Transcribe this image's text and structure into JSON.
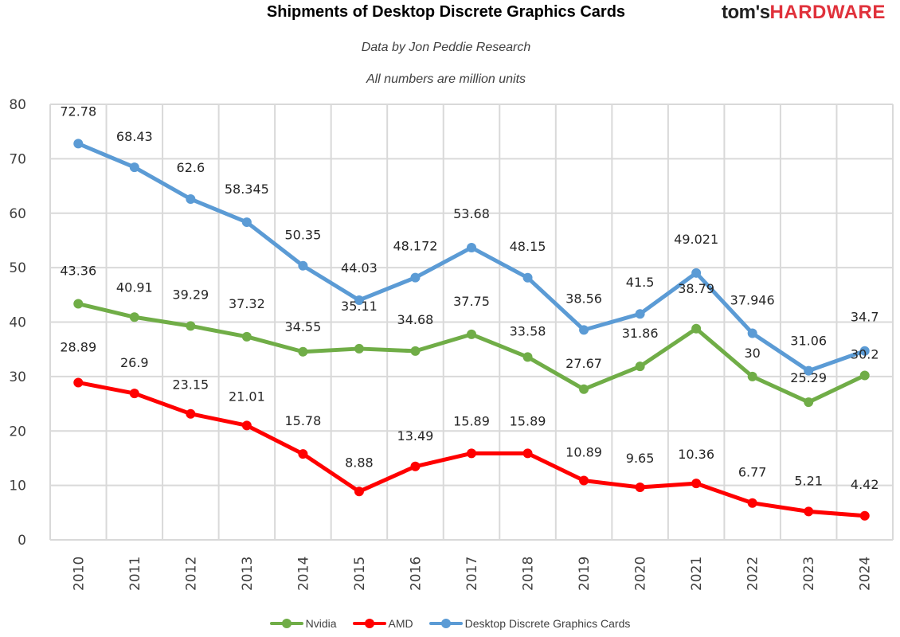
{
  "header": {
    "logo_part1": "tom's",
    "logo_part2": "HARDWARE"
  },
  "chart_data": {
    "type": "line",
    "title": "Shipments of Desktop Discrete Graphics Cards",
    "subtitles": [
      "Data by Jon Peddie Research",
      "All numbers are million units"
    ],
    "xlabel": "",
    "ylabel": "",
    "ylim": [
      0,
      80
    ],
    "yticks": [
      0,
      10,
      20,
      30,
      40,
      50,
      60,
      70,
      80
    ],
    "grid": true,
    "legend_position": "bottom",
    "categories": [
      "2010",
      "2011",
      "2012",
      "2013",
      "2014",
      "2015",
      "2016",
      "2017",
      "2018",
      "2019",
      "2020",
      "2021",
      "2022",
      "2023",
      "2024"
    ],
    "series": [
      {
        "name": "Nvidia",
        "color": "#70ad47",
        "values": [
          43.36,
          40.91,
          39.29,
          37.32,
          34.55,
          35.11,
          34.68,
          37.75,
          33.58,
          27.67,
          31.86,
          38.79,
          30,
          25.29,
          30.2
        ],
        "labels": [
          "43.36",
          "40.91",
          "39.29",
          "37.32",
          "34.55",
          "35.11",
          "34.68",
          "37.75",
          "33.58",
          "27.67",
          "31.86",
          "38.79",
          "30",
          "25.29",
          "30.2"
        ]
      },
      {
        "name": "AMD",
        "color": "#ff0000",
        "values": [
          28.89,
          26.9,
          23.15,
          21.01,
          15.78,
          8.88,
          13.49,
          15.89,
          15.89,
          10.89,
          9.65,
          10.36,
          6.77,
          5.21,
          4.42
        ],
        "labels": [
          "28.89",
          "26.9",
          "23.15",
          "21.01",
          "15.78",
          "8.88",
          "13.49",
          "15.89",
          "15.89",
          "10.89",
          "9.65",
          "10.36",
          "6.77",
          "5.21",
          "4.42"
        ]
      },
      {
        "name": "Desktop Discrete Graphics Cards",
        "color": "#5b9bd5",
        "values": [
          72.78,
          68.43,
          62.6,
          58.345,
          50.35,
          44.03,
          48.172,
          53.68,
          48.15,
          38.56,
          41.5,
          49.021,
          37.946,
          31.06,
          34.7
        ],
        "labels": [
          "72.78",
          "68.43",
          "62.6",
          "58.345",
          "50.35",
          "44.03",
          "48.172",
          "53.68",
          "48.15",
          "38.56",
          "41.5",
          "49.021",
          "37.946",
          "31.06",
          "34.7"
        ]
      }
    ]
  }
}
